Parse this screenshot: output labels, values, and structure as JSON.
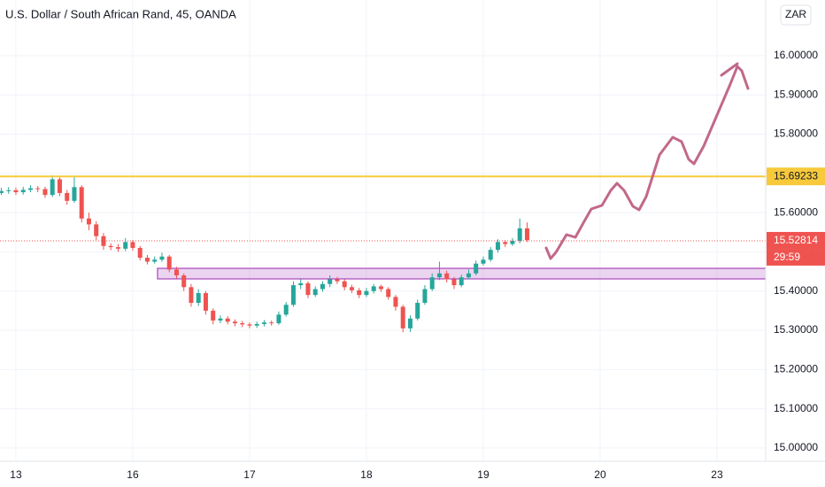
{
  "chart_data": {
    "type": "candlestick",
    "title": "U.S. Dollar / South African Rand, 45, OANDA",
    "currency_button": "ZAR",
    "countdown": "29:59",
    "up_color": "#26a69a",
    "down_color": "#ef5350",
    "grid": true,
    "xlim": [
      -0.136,
      6.417
    ],
    "xticks": [
      {
        "value": 0,
        "label": "13"
      },
      {
        "value": 1,
        "label": "16"
      },
      {
        "value": 2,
        "label": "17"
      },
      {
        "value": 3,
        "label": "18"
      },
      {
        "value": 4,
        "label": "19"
      },
      {
        "value": 5,
        "label": "20"
      },
      {
        "value": 6,
        "label": "23"
      }
    ],
    "ylim": [
      14.966,
      16.142
    ],
    "yticks": [
      {
        "value": 15.0,
        "label": "15.00000"
      },
      {
        "value": 15.1,
        "label": "15.10000"
      },
      {
        "value": 15.2,
        "label": "15.20000"
      },
      {
        "value": 15.3,
        "label": "15.30000"
      },
      {
        "value": 15.4,
        "label": "15.40000"
      },
      {
        "value": 15.5,
        "label": "15.50000"
      },
      {
        "value": 15.6,
        "label": "15.60000"
      },
      {
        "value": 15.7,
        "label": "15.70000"
      },
      {
        "value": 15.8,
        "label": "15.80000"
      },
      {
        "value": 15.9,
        "label": "15.90000"
      },
      {
        "value": 16.0,
        "label": "16.00000"
      }
    ],
    "horizontal_line": {
      "value": 15.69233,
      "color": "#f7c93b"
    },
    "last_price": {
      "value": 15.52814,
      "color": "#ef5350"
    },
    "zone": {
      "x_start": 1.212,
      "top": 15.458,
      "bottom": 15.431,
      "color": "#9c27b0"
    },
    "x": [
      -0.125,
      -0.0625,
      0,
      0.0625,
      0.125,
      0.1875,
      0.25,
      0.3125,
      0.375,
      0.4375,
      0.5,
      0.5625,
      0.625,
      0.6875,
      0.75,
      0.8125,
      0.875,
      0.9375,
      1,
      1.0625,
      1.125,
      1.1875,
      1.25,
      1.3125,
      1.375,
      1.4375,
      1.5,
      1.5625,
      1.625,
      1.6875,
      1.75,
      1.8125,
      1.875,
      1.9375,
      2,
      2.0625,
      2.125,
      2.1875,
      2.25,
      2.3125,
      2.375,
      2.4375,
      2.5,
      2.5625,
      2.625,
      2.6875,
      2.75,
      2.8125,
      2.875,
      2.9375,
      3,
      3.0625,
      3.125,
      3.1875,
      3.25,
      3.3125,
      3.375,
      3.4375,
      3.5,
      3.5625,
      3.625,
      3.6875,
      3.75,
      3.8125,
      3.875,
      3.9375,
      4,
      4.0625,
      4.125,
      4.1875,
      4.25,
      4.3125,
      4.375
    ],
    "open": [
      15.65,
      15.655,
      15.657,
      15.652,
      15.658,
      15.662,
      15.66,
      15.645,
      15.685,
      15.65,
      15.63,
      15.665,
      15.585,
      15.57,
      15.54,
      15.515,
      15.512,
      15.508,
      15.525,
      15.51,
      15.485,
      15.475,
      15.48,
      15.488,
      15.455,
      15.44,
      15.41,
      15.37,
      15.395,
      15.35,
      15.325,
      15.33,
      15.322,
      15.318,
      15.315,
      15.312,
      15.316,
      15.32,
      15.318,
      15.34,
      15.365,
      15.415,
      15.42,
      15.39,
      15.405,
      15.418,
      15.43,
      15.425,
      15.41,
      15.402,
      15.39,
      15.4,
      15.412,
      15.405,
      15.385,
      15.36,
      15.305,
      15.33,
      15.37,
      15.405,
      15.435,
      15.445,
      15.43,
      15.415,
      15.435,
      15.445,
      15.47,
      15.48,
      15.505,
      15.525,
      15.52,
      15.528,
      15.56
    ],
    "high": [
      15.663,
      15.665,
      15.664,
      15.666,
      15.67,
      15.668,
      15.666,
      15.695,
      15.69,
      15.658,
      15.69,
      15.67,
      15.6,
      15.578,
      15.548,
      15.522,
      15.52,
      15.535,
      15.53,
      15.515,
      15.492,
      15.488,
      15.498,
      15.492,
      15.462,
      15.445,
      15.418,
      15.405,
      15.4,
      15.356,
      15.338,
      15.336,
      15.328,
      15.324,
      15.32,
      15.322,
      15.326,
      15.325,
      15.348,
      15.372,
      15.425,
      15.43,
      15.425,
      15.412,
      15.425,
      15.44,
      15.436,
      15.43,
      15.416,
      15.408,
      15.408,
      15.418,
      15.416,
      15.41,
      15.39,
      15.365,
      15.338,
      15.378,
      15.415,
      15.445,
      15.475,
      15.452,
      15.436,
      15.442,
      15.455,
      15.478,
      15.488,
      15.512,
      15.532,
      15.53,
      15.535,
      15.585,
      15.575
    ],
    "low": [
      15.645,
      15.648,
      15.645,
      15.646,
      15.652,
      15.652,
      15.638,
      15.64,
      15.642,
      15.62,
      15.625,
      15.575,
      15.555,
      15.53,
      15.505,
      15.504,
      15.5,
      15.502,
      15.503,
      15.478,
      15.468,
      15.47,
      15.475,
      15.448,
      15.432,
      15.4,
      15.36,
      15.362,
      15.34,
      15.315,
      15.318,
      15.315,
      15.31,
      15.308,
      15.305,
      15.306,
      15.31,
      15.312,
      15.314,
      15.335,
      15.36,
      15.405,
      15.382,
      15.385,
      15.398,
      15.41,
      15.418,
      15.402,
      15.395,
      15.382,
      15.385,
      15.394,
      15.398,
      15.378,
      15.35,
      15.295,
      15.296,
      15.325,
      15.365,
      15.4,
      15.428,
      15.422,
      15.405,
      15.41,
      15.43,
      15.44,
      15.465,
      15.475,
      15.498,
      15.512,
      15.515,
      15.522,
      15.525
    ],
    "close": [
      15.655,
      15.657,
      15.652,
      15.658,
      15.662,
      15.66,
      15.645,
      15.685,
      15.65,
      15.63,
      15.665,
      15.585,
      15.57,
      15.54,
      15.515,
      15.512,
      15.508,
      15.525,
      15.51,
      15.485,
      15.475,
      15.48,
      15.488,
      15.455,
      15.44,
      15.41,
      15.37,
      15.395,
      15.35,
      15.325,
      15.33,
      15.322,
      15.318,
      15.315,
      15.312,
      15.316,
      15.32,
      15.318,
      15.34,
      15.365,
      15.415,
      15.42,
      15.39,
      15.405,
      15.418,
      15.43,
      15.425,
      15.41,
      15.402,
      15.39,
      15.4,
      15.412,
      15.405,
      15.385,
      15.36,
      15.305,
      15.33,
      15.37,
      15.405,
      15.435,
      15.445,
      15.43,
      15.415,
      15.435,
      15.445,
      15.47,
      15.48,
      15.505,
      15.525,
      15.52,
      15.528,
      15.56,
      15.53
    ]
  }
}
